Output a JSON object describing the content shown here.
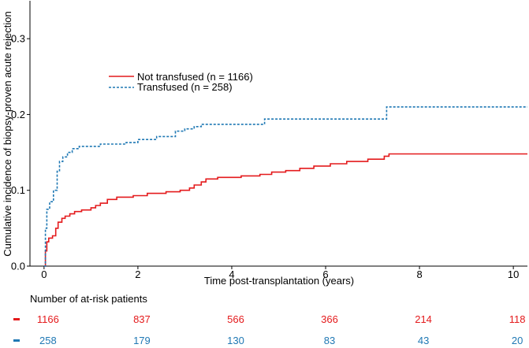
{
  "chart_data": {
    "type": "line",
    "title": "",
    "xlabel": "Time post-transplantation (years)",
    "ylabel": "Cumulative incidence of biopsy-proven acute rejection",
    "xlim": [
      -0.3,
      10.3
    ],
    "ylim": [
      0,
      0.35
    ],
    "xticks": [
      0,
      2,
      4,
      6,
      8,
      10
    ],
    "yticks": [
      0.0,
      0.1,
      0.2,
      0.3
    ],
    "ytick_labels": [
      "0.0",
      "0.1",
      "0.2",
      "0.3"
    ],
    "grid": false,
    "legend_position": "upper-left",
    "series": [
      {
        "name": "Not transfused (n = 1166)",
        "color": "#e41a1c",
        "style": "solid",
        "steps": [
          [
            0.0,
            0.0
          ],
          [
            0.03,
            0.02
          ],
          [
            0.06,
            0.032
          ],
          [
            0.1,
            0.037
          ],
          [
            0.18,
            0.04
          ],
          [
            0.25,
            0.05
          ],
          [
            0.3,
            0.058
          ],
          [
            0.38,
            0.063
          ],
          [
            0.45,
            0.066
          ],
          [
            0.55,
            0.069
          ],
          [
            0.65,
            0.072
          ],
          [
            0.8,
            0.074
          ],
          [
            1.0,
            0.077
          ],
          [
            1.1,
            0.08
          ],
          [
            1.2,
            0.083
          ],
          [
            1.35,
            0.088
          ],
          [
            1.55,
            0.091
          ],
          [
            1.9,
            0.093
          ],
          [
            2.2,
            0.096
          ],
          [
            2.6,
            0.098
          ],
          [
            2.9,
            0.1
          ],
          [
            3.1,
            0.103
          ],
          [
            3.2,
            0.107
          ],
          [
            3.35,
            0.111
          ],
          [
            3.45,
            0.115
          ],
          [
            3.7,
            0.117
          ],
          [
            4.2,
            0.119
          ],
          [
            4.6,
            0.121
          ],
          [
            4.85,
            0.124
          ],
          [
            5.15,
            0.126
          ],
          [
            5.45,
            0.129
          ],
          [
            5.75,
            0.132
          ],
          [
            6.1,
            0.135
          ],
          [
            6.45,
            0.138
          ],
          [
            6.9,
            0.141
          ],
          [
            7.25,
            0.145
          ],
          [
            7.35,
            0.148
          ],
          [
            10.3,
            0.148
          ]
        ]
      },
      {
        "name": "Transfused (n = 258)",
        "color": "#1f78b4",
        "style": "dashed",
        "steps": [
          [
            0.0,
            0.0
          ],
          [
            0.03,
            0.05
          ],
          [
            0.06,
            0.075
          ],
          [
            0.12,
            0.085
          ],
          [
            0.2,
            0.1
          ],
          [
            0.28,
            0.125
          ],
          [
            0.33,
            0.138
          ],
          [
            0.4,
            0.144
          ],
          [
            0.5,
            0.15
          ],
          [
            0.6,
            0.155
          ],
          [
            0.75,
            0.158
          ],
          [
            1.2,
            0.161
          ],
          [
            1.75,
            0.163
          ],
          [
            2.0,
            0.167
          ],
          [
            2.4,
            0.171
          ],
          [
            2.8,
            0.178
          ],
          [
            3.0,
            0.181
          ],
          [
            3.2,
            0.184
          ],
          [
            3.35,
            0.187
          ],
          [
            4.7,
            0.194
          ],
          [
            7.3,
            0.21
          ],
          [
            10.3,
            0.21
          ]
        ]
      }
    ],
    "at_risk": {
      "title": "Number of at-risk patients",
      "times": [
        0,
        2,
        4,
        6,
        8,
        10
      ],
      "rows": [
        {
          "color": "#e41a1c",
          "values": [
            "1166",
            "837",
            "566",
            "366",
            "214",
            "118"
          ]
        },
        {
          "color": "#1f78b4",
          "values": [
            "258",
            "179",
            "130",
            "83",
            "43",
            "20"
          ]
        }
      ]
    }
  }
}
